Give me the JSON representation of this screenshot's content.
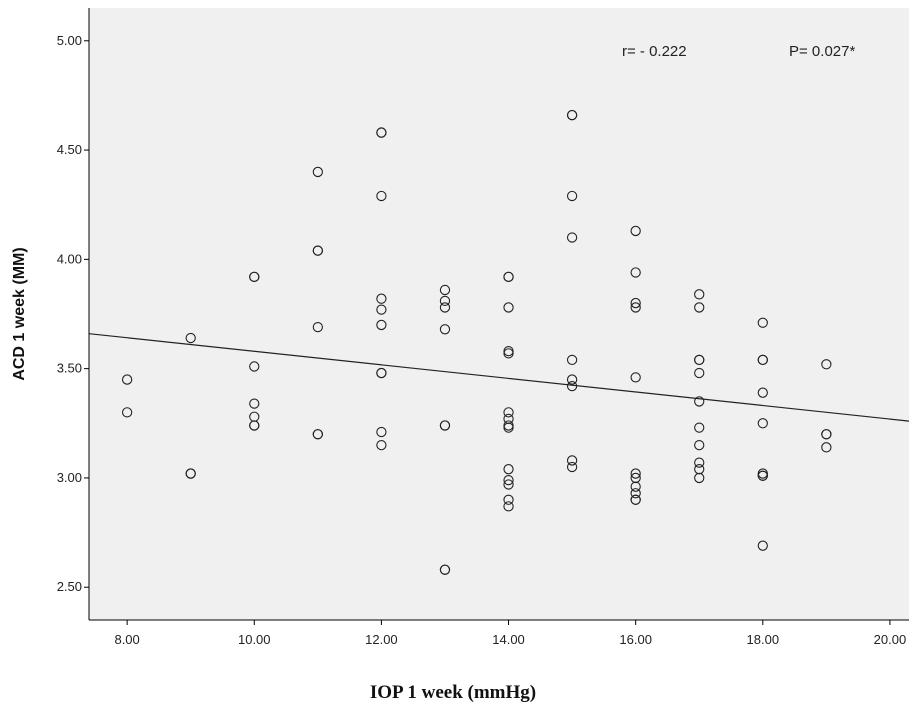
{
  "chart_data": {
    "type": "scatter",
    "xlabel": "IOP 1 week (mmHg)",
    "ylabel": "ACD 1 week (MM)",
    "xlim": [
      7.4,
      20.3
    ],
    "ylim": [
      2.35,
      5.15
    ],
    "x_ticks": [
      8,
      10,
      12,
      14,
      16,
      18,
      20
    ],
    "x_tick_labels": [
      "8.00",
      "10.00",
      "12.00",
      "14.00",
      "16.00",
      "18.00",
      "20.00"
    ],
    "y_ticks": [
      2.5,
      3.0,
      3.5,
      4.0,
      4.5,
      5.0
    ],
    "y_tick_labels": [
      "2.50",
      "3.00",
      "3.50",
      "4.00",
      "4.50",
      "5.00"
    ],
    "grid": false,
    "annotations": [
      "r= - 0.222",
      "P= 0.027*"
    ],
    "fit_line": {
      "x": [
        7.4,
        20.3
      ],
      "y": [
        3.66,
        3.26
      ]
    },
    "points": [
      {
        "x": 8,
        "y": 3.45
      },
      {
        "x": 8,
        "y": 3.3
      },
      {
        "x": 9,
        "y": 3.64
      },
      {
        "x": 9,
        "y": 3.02
      },
      {
        "x": 9,
        "y": 3.02
      },
      {
        "x": 10,
        "y": 3.92
      },
      {
        "x": 10,
        "y": 3.92
      },
      {
        "x": 10,
        "y": 3.51
      },
      {
        "x": 10,
        "y": 3.34
      },
      {
        "x": 10,
        "y": 3.28
      },
      {
        "x": 10,
        "y": 3.24
      },
      {
        "x": 10,
        "y": 3.24
      },
      {
        "x": 11,
        "y": 4.4
      },
      {
        "x": 11,
        "y": 4.04
      },
      {
        "x": 11,
        "y": 4.04
      },
      {
        "x": 11,
        "y": 3.69
      },
      {
        "x": 11,
        "y": 3.2
      },
      {
        "x": 11,
        "y": 3.2
      },
      {
        "x": 12,
        "y": 4.58
      },
      {
        "x": 12,
        "y": 4.58
      },
      {
        "x": 12,
        "y": 4.29
      },
      {
        "x": 12,
        "y": 3.82
      },
      {
        "x": 12,
        "y": 3.77
      },
      {
        "x": 12,
        "y": 3.7
      },
      {
        "x": 12,
        "y": 3.48
      },
      {
        "x": 12,
        "y": 3.48
      },
      {
        "x": 12,
        "y": 3.21
      },
      {
        "x": 12,
        "y": 3.15
      },
      {
        "x": 13,
        "y": 3.86
      },
      {
        "x": 13,
        "y": 3.81
      },
      {
        "x": 13,
        "y": 3.78
      },
      {
        "x": 13,
        "y": 3.68
      },
      {
        "x": 13,
        "y": 3.24
      },
      {
        "x": 13,
        "y": 3.24
      },
      {
        "x": 13,
        "y": 2.58
      },
      {
        "x": 13,
        "y": 2.58
      },
      {
        "x": 14,
        "y": 3.92
      },
      {
        "x": 14,
        "y": 3.92
      },
      {
        "x": 14,
        "y": 3.78
      },
      {
        "x": 14,
        "y": 3.58
      },
      {
        "x": 14,
        "y": 3.57
      },
      {
        "x": 14,
        "y": 3.3
      },
      {
        "x": 14,
        "y": 3.27
      },
      {
        "x": 14,
        "y": 3.24
      },
      {
        "x": 14,
        "y": 3.23
      },
      {
        "x": 14,
        "y": 3.04
      },
      {
        "x": 14,
        "y": 2.99
      },
      {
        "x": 14,
        "y": 2.97
      },
      {
        "x": 14,
        "y": 2.9
      },
      {
        "x": 14,
        "y": 2.87
      },
      {
        "x": 15,
        "y": 4.66
      },
      {
        "x": 15,
        "y": 4.66
      },
      {
        "x": 15,
        "y": 4.29
      },
      {
        "x": 15,
        "y": 4.1
      },
      {
        "x": 15,
        "y": 3.54
      },
      {
        "x": 15,
        "y": 3.45
      },
      {
        "x": 15,
        "y": 3.42
      },
      {
        "x": 15,
        "y": 3.08
      },
      {
        "x": 15,
        "y": 3.05
      },
      {
        "x": 16,
        "y": 4.13
      },
      {
        "x": 16,
        "y": 3.94
      },
      {
        "x": 16,
        "y": 3.8
      },
      {
        "x": 16,
        "y": 3.78
      },
      {
        "x": 16,
        "y": 3.46
      },
      {
        "x": 16,
        "y": 3.02
      },
      {
        "x": 16,
        "y": 3.0
      },
      {
        "x": 16,
        "y": 2.96
      },
      {
        "x": 16,
        "y": 2.93
      },
      {
        "x": 16,
        "y": 2.9
      },
      {
        "x": 16,
        "y": 2.9
      },
      {
        "x": 17,
        "y": 3.84
      },
      {
        "x": 17,
        "y": 3.78
      },
      {
        "x": 17,
        "y": 3.54
      },
      {
        "x": 17,
        "y": 3.54
      },
      {
        "x": 17,
        "y": 3.48
      },
      {
        "x": 17,
        "y": 3.35
      },
      {
        "x": 17,
        "y": 3.23
      },
      {
        "x": 17,
        "y": 3.15
      },
      {
        "x": 17,
        "y": 3.07
      },
      {
        "x": 17,
        "y": 3.04
      },
      {
        "x": 17,
        "y": 3.0
      },
      {
        "x": 18,
        "y": 3.71
      },
      {
        "x": 18,
        "y": 3.54
      },
      {
        "x": 18,
        "y": 3.54
      },
      {
        "x": 18,
        "y": 3.39
      },
      {
        "x": 18,
        "y": 3.25
      },
      {
        "x": 18,
        "y": 3.02
      },
      {
        "x": 18,
        "y": 3.01
      },
      {
        "x": 18,
        "y": 3.01
      },
      {
        "x": 18,
        "y": 2.69
      },
      {
        "x": 19,
        "y": 3.52
      },
      {
        "x": 19,
        "y": 3.2
      },
      {
        "x": 19,
        "y": 3.2
      },
      {
        "x": 19,
        "y": 3.14
      }
    ]
  },
  "colors": {
    "plot_background": "#f0f0f0",
    "axis": "#000000",
    "marker_stroke": "#222222",
    "fit_line": "#222222"
  }
}
